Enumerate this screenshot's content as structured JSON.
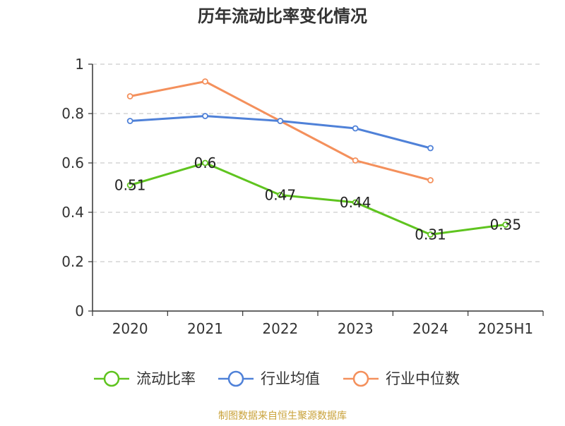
{
  "chart_data": {
    "type": "line",
    "title": "历年流动比率变化情况",
    "categories": [
      "2020",
      "2021",
      "2022",
      "2023",
      "2024",
      "2025H1"
    ],
    "y_ticks": [
      "0",
      "0.2",
      "0.4",
      "0.6",
      "0.8",
      "1"
    ],
    "ylim": [
      0,
      1
    ],
    "grid": true,
    "legend_position": "bottom",
    "series": [
      {
        "name": "流动比率",
        "color": "#5fc41f",
        "values": [
          0.51,
          0.6,
          0.47,
          0.44,
          0.31,
          0.35
        ],
        "labels": [
          "0.51",
          "0.6",
          "0.47",
          "0.44",
          "0.31",
          "0.35"
        ]
      },
      {
        "name": "行业均值",
        "color": "#4f81d8",
        "values": [
          0.77,
          0.79,
          0.77,
          0.74,
          0.66,
          null
        ]
      },
      {
        "name": "行业中位数",
        "color": "#f4905c",
        "values": [
          0.87,
          0.93,
          0.77,
          0.61,
          0.53,
          null
        ]
      }
    ]
  },
  "source_text": "制图数据来自恒生聚源数据库",
  "colors": {
    "axis": "#333333",
    "grid": "#cccccc",
    "source": "#c9a23a"
  }
}
